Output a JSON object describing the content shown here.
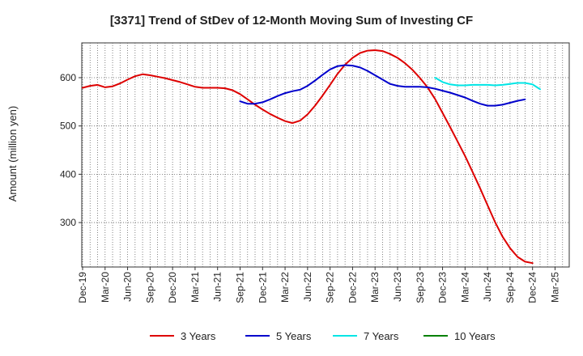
{
  "chart_data": {
    "type": "line",
    "title": "[3371]  Trend of StDev of 12-Month Moving Sum of Investing CF",
    "xlabel": "",
    "ylabel": "Amount (million yen)",
    "ylim": [
      208,
      672
    ],
    "yticks": [
      300,
      400,
      500,
      600
    ],
    "grid": true,
    "legend_position": "bottom",
    "x_tick_labels": [
      "Dec-19",
      "Mar-20",
      "Jun-20",
      "Sep-20",
      "Dec-20",
      "Mar-21",
      "Jun-21",
      "Sep-21",
      "Dec-21",
      "Mar-22",
      "Jun-22",
      "Sep-22",
      "Dec-22",
      "Mar-23",
      "Jun-23",
      "Sep-23",
      "Dec-23",
      "Mar-24",
      "Jun-24",
      "Sep-24",
      "Dec-24",
      "Mar-25"
    ],
    "x_months_per_tick": 3,
    "series": [
      {
        "name": "3 Years",
        "color": "#dd0000",
        "start_index": 0,
        "values": [
          579,
          583,
          585,
          580,
          582,
          588,
          596,
          603,
          607,
          605,
          602,
          599,
          595,
          591,
          586,
          581,
          579,
          579,
          579,
          578,
          574,
          566,
          555,
          544,
          534,
          525,
          517,
          510,
          506,
          511,
          524,
          542,
          563,
          585,
          608,
          627,
          641,
          651,
          656,
          657,
          655,
          649,
          641,
          630,
          616,
          599,
          580,
          556,
          527,
          498,
          468,
          438,
          405,
          371,
          336,
          301,
          271,
          247,
          229,
          219,
          216
        ]
      },
      {
        "name": "5 Years",
        "color": "#0000cc",
        "start_index": 21,
        "values": [
          551,
          546,
          546,
          549,
          555,
          562,
          568,
          572,
          575,
          583,
          594,
          606,
          617,
          624,
          626,
          625,
          621,
          614,
          605,
          596,
          587,
          583,
          581,
          581,
          581,
          580,
          577,
          573,
          569,
          564,
          559,
          552,
          546,
          542,
          542,
          544,
          548,
          552,
          555
        ]
      },
      {
        "name": "7 Years",
        "color": "#00e5e5",
        "start_index": 47,
        "values": [
          600,
          591,
          586,
          584,
          584,
          585,
          585,
          585,
          584,
          585,
          587,
          589,
          589,
          586,
          576
        ]
      },
      {
        "name": "10 Years",
        "color": "#008000",
        "start_index": 0,
        "values": []
      }
    ]
  }
}
